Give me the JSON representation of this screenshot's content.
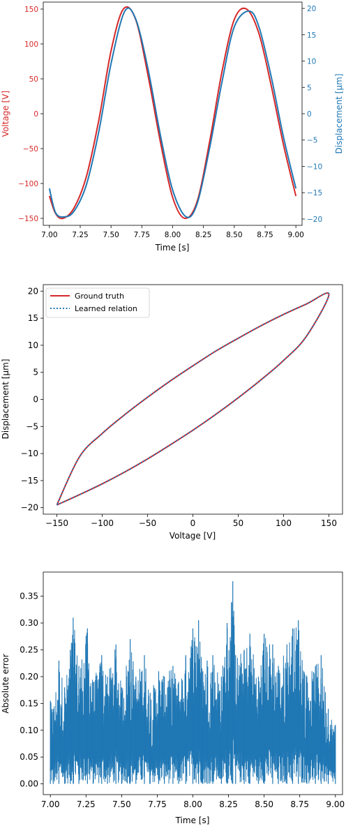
{
  "colors": {
    "red": "#d62728",
    "blue": "#1f77b4",
    "axis": "#000000"
  },
  "chart_data": [
    {
      "type": "line",
      "id": "time-series",
      "x_range": [
        7.0,
        9.0
      ],
      "xticks": [
        7.0,
        7.25,
        7.5,
        7.75,
        8.0,
        8.25,
        8.5,
        8.75,
        9.0
      ],
      "xtick_labels": [
        "7.00",
        "7.25",
        "7.50",
        "7.75",
        "8.00",
        "8.25",
        "8.50",
        "8.75",
        "9.00"
      ],
      "xlabel": "Time [s]",
      "left_axis": {
        "label": "Voltage [V]",
        "ylim": [
          -160,
          160
        ],
        "ticks": [
          -150,
          -100,
          -50,
          0,
          50,
          100,
          150
        ],
        "tick_labels": [
          "−150",
          "−100",
          "−50",
          "0",
          "50",
          "100",
          "150"
        ]
      },
      "right_axis": {
        "label": "Displacement [μm]",
        "ylim": [
          -21.2,
          21.2
        ],
        "ticks": [
          -20,
          -15,
          -10,
          -5,
          0,
          5,
          10,
          15,
          20
        ],
        "tick_labels": [
          "−20",
          "−15",
          "−10",
          "−5",
          "0",
          "5",
          "10",
          "15",
          "20"
        ]
      },
      "series": [
        {
          "axis": "left",
          "color": "#d62728",
          "x": [
            7.0,
            7.05,
            7.11,
            7.2,
            7.3,
            7.4,
            7.5,
            7.6,
            7.7,
            7.8,
            7.9,
            8.0,
            8.1,
            8.2,
            8.3,
            8.4,
            8.5,
            8.6,
            8.7,
            8.8,
            8.9,
            9.0
          ],
          "y": [
            -118,
            -143,
            -150,
            -135,
            -90,
            -10,
            90,
            150,
            135,
            55,
            -40,
            -120,
            -150,
            -125,
            -40,
            60,
            135,
            150,
            115,
            40,
            -45,
            -118
          ]
        },
        {
          "axis": "right",
          "color": "#1f77b4",
          "x": [
            7.0,
            7.05,
            7.12,
            7.2,
            7.3,
            7.4,
            7.5,
            7.61,
            7.7,
            7.8,
            7.9,
            8.0,
            8.11,
            8.2,
            8.3,
            8.4,
            8.5,
            8.62,
            8.7,
            8.8,
            8.9,
            9.0
          ],
          "y": [
            -14.2,
            -18.8,
            -19.6,
            -18.5,
            -13.5,
            -3.5,
            9.5,
            19.4,
            18.0,
            8.5,
            -4.0,
            -14.5,
            -19.6,
            -17.0,
            -6.5,
            6.0,
            16.5,
            19.5,
            16.5,
            7.0,
            -4.5,
            -14.2
          ]
        }
      ]
    },
    {
      "type": "line",
      "id": "hysteresis",
      "xlabel": "Voltage [V]",
      "ylabel": "Displacement [μm]",
      "xlim": [
        -165,
        165
      ],
      "ylim": [
        -21.2,
        21.2
      ],
      "xticks": [
        -150,
        -100,
        -50,
        0,
        50,
        100,
        150
      ],
      "xtick_labels": [
        "−150",
        "−100",
        "−50",
        "0",
        "50",
        "100",
        "150"
      ],
      "yticks": [
        -20,
        -15,
        -10,
        -5,
        0,
        5,
        10,
        15,
        20
      ],
      "ytick_labels": [
        "−20",
        "−15",
        "−10",
        "−5",
        "0",
        "5",
        "10",
        "15",
        "20"
      ],
      "legend": {
        "placement": "top-left",
        "entries": [
          "Ground truth",
          "Learned relation"
        ]
      },
      "series": [
        {
          "name": "Ground truth",
          "style": "solid",
          "color": "#d62728",
          "x": [
            -150,
            -125,
            -100,
            -75,
            -50,
            -25,
            0,
            25,
            50,
            75,
            100,
            125,
            150,
            125,
            100,
            75,
            50,
            25,
            0,
            -25,
            -50,
            -75,
            -100,
            -125,
            -150
          ],
          "y": [
            -19.5,
            -17.6,
            -15.6,
            -13.4,
            -11.0,
            -8.4,
            -5.7,
            -2.8,
            0.3,
            3.6,
            7.2,
            11.6,
            19.4,
            17.6,
            15.7,
            13.6,
            11.3,
            8.9,
            6.2,
            3.4,
            0.4,
            -2.8,
            -6.3,
            -10.6,
            -19.5
          ]
        },
        {
          "name": "Learned relation",
          "style": "dotted",
          "color": "#1f77b4",
          "x": [
            -150,
            -125,
            -100,
            -75,
            -50,
            -25,
            0,
            25,
            50,
            75,
            100,
            125,
            150,
            125,
            100,
            75,
            50,
            25,
            0,
            -25,
            -50,
            -75,
            -100,
            -125,
            -150
          ],
          "y": [
            -19.5,
            -17.6,
            -15.6,
            -13.4,
            -11.0,
            -8.4,
            -5.7,
            -2.8,
            0.3,
            3.6,
            7.2,
            11.6,
            19.4,
            17.6,
            15.7,
            13.6,
            11.3,
            8.9,
            6.2,
            3.4,
            0.4,
            -2.8,
            -6.3,
            -10.6,
            -19.5
          ]
        }
      ]
    },
    {
      "type": "line",
      "id": "absolute-error",
      "xlabel": "Time [s]",
      "ylabel": "Absolute error",
      "xlim": [
        6.95,
        9.05
      ],
      "ylim": [
        -0.02,
        0.395
      ],
      "xticks": [
        7.0,
        7.25,
        7.5,
        7.75,
        8.0,
        8.25,
        8.5,
        8.75,
        9.0
      ],
      "xtick_labels": [
        "7.00",
        "7.25",
        "7.50",
        "7.75",
        "8.00",
        "8.25",
        "8.50",
        "8.75",
        "9.00"
      ],
      "yticks": [
        0.0,
        0.05,
        0.1,
        0.15,
        0.2,
        0.25,
        0.3,
        0.35
      ],
      "ytick_labels": [
        "0.00",
        "0.05",
        "0.10",
        "0.15",
        "0.20",
        "0.25",
        "0.30",
        "0.35"
      ],
      "series": [
        {
          "color": "#1f77b4",
          "x": [
            7.0,
            7.02,
            7.06,
            7.1,
            7.14,
            7.16,
            7.2,
            7.26,
            7.3,
            7.36,
            7.4,
            7.46,
            7.5,
            7.56,
            7.6,
            7.66,
            7.7,
            7.76,
            7.8,
            7.86,
            7.9,
            7.95,
            8.0,
            8.04,
            8.07,
            8.1,
            8.14,
            8.2,
            8.24,
            8.28,
            8.3,
            8.36,
            8.4,
            8.46,
            8.5,
            8.56,
            8.6,
            8.66,
            8.7,
            8.74,
            8.8,
            8.86,
            8.9,
            8.95,
            9.0
          ],
          "y": [
            0.155,
            0.14,
            0.23,
            0.18,
            0.25,
            0.31,
            0.22,
            0.29,
            0.19,
            0.24,
            0.2,
            0.26,
            0.18,
            0.27,
            0.2,
            0.24,
            0.17,
            0.21,
            0.2,
            0.22,
            0.19,
            0.24,
            0.29,
            0.305,
            0.21,
            0.23,
            0.24,
            0.2,
            0.3,
            0.378,
            0.24,
            0.25,
            0.28,
            0.2,
            0.28,
            0.26,
            0.22,
            0.26,
            0.29,
            0.305,
            0.2,
            0.22,
            0.24,
            0.14,
            0.11
          ]
        }
      ]
    }
  ]
}
